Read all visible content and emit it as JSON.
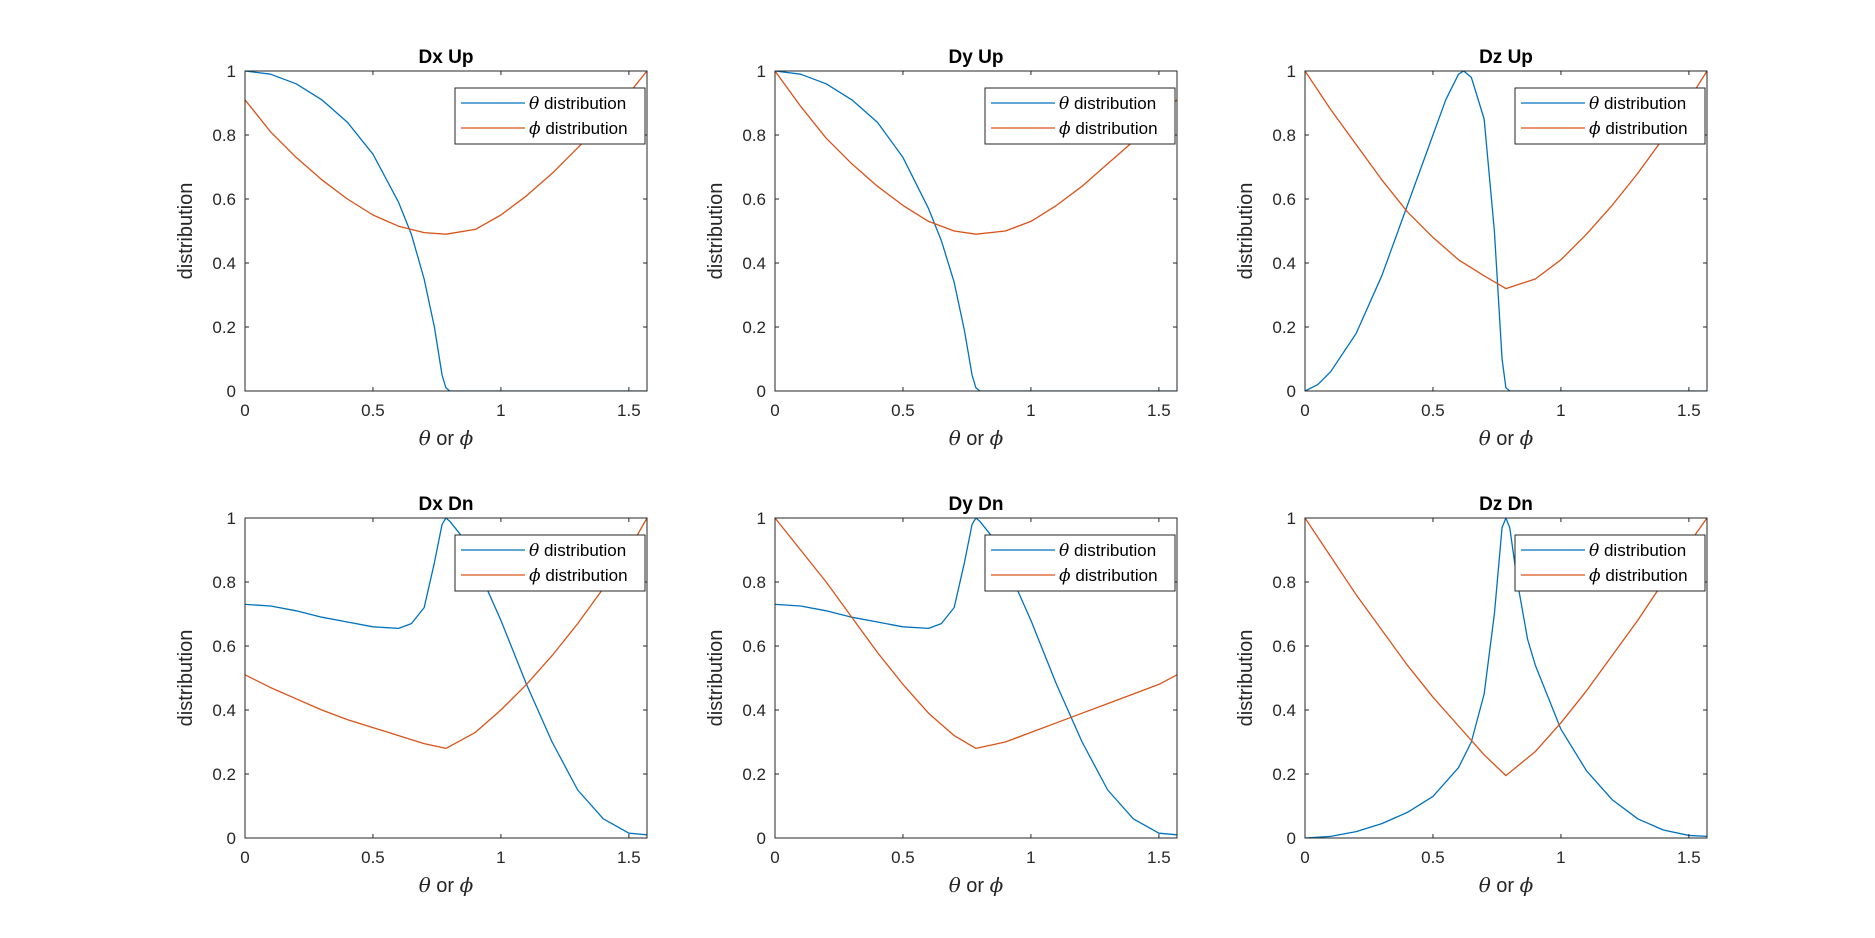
{
  "chart_data": [
    {
      "type": "line",
      "title": "Dx Up",
      "xlabel": "θ or ϕ",
      "ylabel": "distribution",
      "xlim": [
        0,
        1.5708
      ],
      "ylim": [
        0,
        1
      ],
      "xticks": [
        "0",
        "0.5",
        "1",
        "1.5"
      ],
      "yticks": [
        "0",
        "0.2",
        "0.4",
        "0.6",
        "0.8",
        "1"
      ],
      "legend_position": "top-right",
      "series": [
        {
          "name": "θ distribution",
          "color": "#0072BD",
          "x": [
            0,
            0.1,
            0.2,
            0.3,
            0.4,
            0.5,
            0.6,
            0.65,
            0.7,
            0.74,
            0.77,
            0.785,
            0.8,
            1.0,
            1.2,
            1.4,
            1.5708
          ],
          "y": [
            1.0,
            0.99,
            0.96,
            0.91,
            0.84,
            0.74,
            0.59,
            0.49,
            0.35,
            0.2,
            0.05,
            0.01,
            0.0,
            0.0,
            0.0,
            0.0,
            0.0
          ]
        },
        {
          "name": "ϕ distribution",
          "color": "#D95319",
          "x": [
            0,
            0.1,
            0.2,
            0.3,
            0.4,
            0.5,
            0.6,
            0.7,
            0.785,
            0.9,
            1.0,
            1.1,
            1.2,
            1.3,
            1.4,
            1.5,
            1.5708
          ],
          "y": [
            0.91,
            0.81,
            0.73,
            0.66,
            0.6,
            0.55,
            0.515,
            0.495,
            0.49,
            0.505,
            0.55,
            0.61,
            0.68,
            0.76,
            0.84,
            0.93,
            1.0
          ]
        }
      ]
    },
    {
      "type": "line",
      "title": "Dy Up",
      "xlabel": "θ or ϕ",
      "ylabel": "distribution",
      "xlim": [
        0,
        1.5708
      ],
      "ylim": [
        0,
        1
      ],
      "xticks": [
        "0",
        "0.5",
        "1",
        "1.5"
      ],
      "yticks": [
        "0",
        "0.2",
        "0.4",
        "0.6",
        "0.8",
        "1"
      ],
      "legend_position": "top-right",
      "series": [
        {
          "name": "θ distribution",
          "color": "#0072BD",
          "x": [
            0,
            0.1,
            0.2,
            0.3,
            0.4,
            0.5,
            0.6,
            0.65,
            0.7,
            0.74,
            0.77,
            0.785,
            0.8,
            1.0,
            1.2,
            1.4,
            1.5708
          ],
          "y": [
            1.0,
            0.99,
            0.96,
            0.91,
            0.84,
            0.73,
            0.57,
            0.47,
            0.34,
            0.19,
            0.05,
            0.01,
            0.0,
            0.0,
            0.0,
            0.0,
            0.0
          ]
        },
        {
          "name": "ϕ distribution",
          "color": "#D95319",
          "x": [
            0,
            0.1,
            0.2,
            0.3,
            0.4,
            0.5,
            0.6,
            0.7,
            0.785,
            0.9,
            1.0,
            1.1,
            1.2,
            1.3,
            1.4,
            1.5,
            1.5708
          ],
          "y": [
            1.0,
            0.89,
            0.79,
            0.71,
            0.64,
            0.58,
            0.53,
            0.5,
            0.49,
            0.5,
            0.53,
            0.58,
            0.64,
            0.71,
            0.78,
            0.86,
            0.91
          ]
        }
      ]
    },
    {
      "type": "line",
      "title": "Dz Up",
      "xlabel": "θ or ϕ",
      "ylabel": "distribution",
      "xlim": [
        0,
        1.5708
      ],
      "ylim": [
        0,
        1
      ],
      "xticks": [
        "0",
        "0.5",
        "1",
        "1.5"
      ],
      "yticks": [
        "0",
        "0.2",
        "0.4",
        "0.6",
        "0.8",
        "1"
      ],
      "legend_position": "top-right",
      "series": [
        {
          "name": "θ distribution",
          "color": "#0072BD",
          "x": [
            0,
            0.05,
            0.1,
            0.2,
            0.3,
            0.4,
            0.5,
            0.55,
            0.6,
            0.62,
            0.65,
            0.7,
            0.74,
            0.77,
            0.785,
            0.8,
            1.0,
            1.2,
            1.4,
            1.5708
          ],
          "y": [
            0.0,
            0.02,
            0.06,
            0.18,
            0.36,
            0.58,
            0.8,
            0.91,
            0.99,
            1.0,
            0.98,
            0.85,
            0.5,
            0.1,
            0.01,
            0.0,
            0.0,
            0.0,
            0.0,
            0.0
          ]
        },
        {
          "name": "ϕ distribution",
          "color": "#D95319",
          "x": [
            0,
            0.1,
            0.2,
            0.3,
            0.4,
            0.5,
            0.6,
            0.7,
            0.785,
            0.9,
            1.0,
            1.1,
            1.2,
            1.3,
            1.4,
            1.5,
            1.5708
          ],
          "y": [
            1.0,
            0.88,
            0.77,
            0.66,
            0.56,
            0.48,
            0.41,
            0.36,
            0.32,
            0.35,
            0.41,
            0.49,
            0.58,
            0.68,
            0.79,
            0.91,
            1.0
          ]
        }
      ]
    },
    {
      "type": "line",
      "title": "Dx Dn",
      "xlabel": "θ or ϕ",
      "ylabel": "distribution",
      "xlim": [
        0,
        1.5708
      ],
      "ylim": [
        0,
        1
      ],
      "xticks": [
        "0",
        "0.5",
        "1",
        "1.5"
      ],
      "yticks": [
        "0",
        "0.2",
        "0.4",
        "0.6",
        "0.8",
        "1"
      ],
      "legend_position": "top-right",
      "series": [
        {
          "name": "θ distribution",
          "color": "#0072BD",
          "x": [
            0,
            0.1,
            0.2,
            0.3,
            0.4,
            0.5,
            0.6,
            0.65,
            0.7,
            0.74,
            0.77,
            0.785,
            0.8,
            0.85,
            0.9,
            1.0,
            1.1,
            1.2,
            1.3,
            1.4,
            1.5,
            1.5708
          ],
          "y": [
            0.73,
            0.725,
            0.71,
            0.69,
            0.675,
            0.66,
            0.655,
            0.67,
            0.72,
            0.86,
            0.98,
            1.0,
            0.99,
            0.94,
            0.86,
            0.68,
            0.48,
            0.3,
            0.15,
            0.06,
            0.015,
            0.01
          ]
        },
        {
          "name": "ϕ distribution",
          "color": "#D95319",
          "x": [
            0,
            0.1,
            0.2,
            0.3,
            0.4,
            0.5,
            0.6,
            0.7,
            0.785,
            0.9,
            1.0,
            1.1,
            1.2,
            1.3,
            1.4,
            1.5,
            1.5708
          ],
          "y": [
            0.51,
            0.47,
            0.435,
            0.4,
            0.37,
            0.345,
            0.32,
            0.295,
            0.28,
            0.33,
            0.4,
            0.48,
            0.57,
            0.67,
            0.78,
            0.9,
            1.0
          ]
        }
      ]
    },
    {
      "type": "line",
      "title": "Dy Dn",
      "xlabel": "θ or ϕ",
      "ylabel": "distribution",
      "xlim": [
        0,
        1.5708
      ],
      "ylim": [
        0,
        1
      ],
      "xticks": [
        "0",
        "0.5",
        "1",
        "1.5"
      ],
      "yticks": [
        "0",
        "0.2",
        "0.4",
        "0.6",
        "0.8",
        "1"
      ],
      "legend_position": "top-right",
      "series": [
        {
          "name": "θ distribution",
          "color": "#0072BD",
          "x": [
            0,
            0.1,
            0.2,
            0.3,
            0.4,
            0.5,
            0.6,
            0.65,
            0.7,
            0.74,
            0.77,
            0.785,
            0.8,
            0.85,
            0.9,
            1.0,
            1.1,
            1.2,
            1.3,
            1.4,
            1.5,
            1.5708
          ],
          "y": [
            0.73,
            0.725,
            0.71,
            0.69,
            0.675,
            0.66,
            0.655,
            0.67,
            0.72,
            0.86,
            0.98,
            1.0,
            0.99,
            0.94,
            0.86,
            0.68,
            0.48,
            0.3,
            0.15,
            0.06,
            0.015,
            0.01
          ]
        },
        {
          "name": "ϕ distribution",
          "color": "#D95319",
          "x": [
            0,
            0.1,
            0.2,
            0.3,
            0.4,
            0.5,
            0.6,
            0.7,
            0.785,
            0.9,
            1.0,
            1.1,
            1.2,
            1.3,
            1.4,
            1.5,
            1.5708
          ],
          "y": [
            1.0,
            0.9,
            0.8,
            0.69,
            0.58,
            0.48,
            0.39,
            0.32,
            0.28,
            0.3,
            0.33,
            0.36,
            0.39,
            0.42,
            0.45,
            0.48,
            0.51
          ]
        }
      ]
    },
    {
      "type": "line",
      "title": "Dz Dn",
      "xlabel": "θ or ϕ",
      "ylabel": "distribution",
      "xlim": [
        0,
        1.5708
      ],
      "ylim": [
        0,
        1
      ],
      "xticks": [
        "0",
        "0.5",
        "1",
        "1.5"
      ],
      "yticks": [
        "0",
        "0.2",
        "0.4",
        "0.6",
        "0.8",
        "1"
      ],
      "legend_position": "top-right",
      "series": [
        {
          "name": "θ distribution",
          "color": "#0072BD",
          "x": [
            0,
            0.1,
            0.2,
            0.3,
            0.4,
            0.5,
            0.6,
            0.65,
            0.7,
            0.74,
            0.77,
            0.785,
            0.8,
            0.83,
            0.87,
            0.9,
            1.0,
            1.1,
            1.2,
            1.3,
            1.4,
            1.5,
            1.5708
          ],
          "y": [
            0.0,
            0.005,
            0.02,
            0.045,
            0.08,
            0.13,
            0.22,
            0.3,
            0.45,
            0.7,
            0.97,
            1.0,
            0.97,
            0.8,
            0.62,
            0.54,
            0.34,
            0.21,
            0.12,
            0.06,
            0.025,
            0.008,
            0.005
          ]
        },
        {
          "name": "ϕ distribution",
          "color": "#D95319",
          "x": [
            0,
            0.1,
            0.2,
            0.3,
            0.4,
            0.5,
            0.6,
            0.7,
            0.785,
            0.9,
            1.0,
            1.1,
            1.2,
            1.3,
            1.4,
            1.5,
            1.5708
          ],
          "y": [
            1.0,
            0.88,
            0.76,
            0.65,
            0.54,
            0.44,
            0.35,
            0.26,
            0.195,
            0.27,
            0.36,
            0.46,
            0.57,
            0.68,
            0.8,
            0.92,
            1.0
          ]
        }
      ]
    }
  ]
}
